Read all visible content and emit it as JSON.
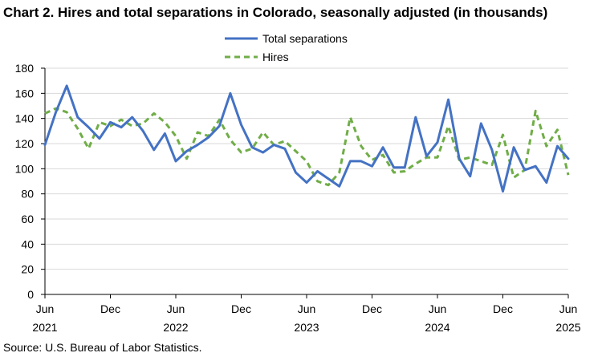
{
  "title": "Chart 2. Hires and total separations in Colorado, seasonally adjusted (in thousands)",
  "source": "Source: U.S. Bureau of Labor Statistics.",
  "chart_data": {
    "type": "line",
    "ylim": [
      0,
      180
    ],
    "yticks": [
      0,
      20,
      40,
      60,
      80,
      100,
      120,
      140,
      160,
      180
    ],
    "grid": true,
    "legend_position": "top-center",
    "x": [
      "2021-06",
      "2021-07",
      "2021-08",
      "2021-09",
      "2021-10",
      "2021-11",
      "2021-12",
      "2022-01",
      "2022-02",
      "2022-03",
      "2022-04",
      "2022-05",
      "2022-06",
      "2022-07",
      "2022-08",
      "2022-09",
      "2022-10",
      "2022-11",
      "2022-12",
      "2023-01",
      "2023-02",
      "2023-03",
      "2023-04",
      "2023-05",
      "2023-06",
      "2023-07",
      "2023-08",
      "2023-09",
      "2023-10",
      "2023-11",
      "2023-12",
      "2024-01",
      "2024-02",
      "2024-03",
      "2024-04",
      "2024-05",
      "2024-06",
      "2024-07",
      "2024-08",
      "2024-09",
      "2024-10",
      "2024-11",
      "2024-12",
      "2025-01",
      "2025-02",
      "2025-03",
      "2025-04",
      "2025-05",
      "2025-06"
    ],
    "xticks": [
      {
        "month": "Jun",
        "year": "2021"
      },
      {
        "month": "Dec",
        "year": ""
      },
      {
        "month": "Jun",
        "year": "2022"
      },
      {
        "month": "Dec",
        "year": ""
      },
      {
        "month": "Jun",
        "year": "2023"
      },
      {
        "month": "Dec",
        "year": ""
      },
      {
        "month": "Jun",
        "year": "2024"
      },
      {
        "month": "Dec",
        "year": ""
      },
      {
        "month": "Jun",
        "year": "2025"
      }
    ],
    "series": [
      {
        "name": "Total separations",
        "color": "#4472C4",
        "dash": "solid",
        "values": [
          119,
          145,
          166,
          141,
          133,
          124,
          137,
          133,
          141,
          130,
          115,
          128,
          106,
          114,
          119,
          125,
          134,
          160,
          135,
          117,
          113,
          119,
          116,
          97,
          89,
          98,
          92,
          86,
          106,
          106,
          102,
          117,
          101,
          101,
          141,
          110,
          121,
          155,
          108,
          94,
          136,
          115,
          82,
          117,
          99,
          102,
          89,
          118,
          108
        ]
      },
      {
        "name": "Hires",
        "color": "#70AD47",
        "dash": "dashed",
        "values": [
          144,
          148,
          145,
          132,
          116,
          137,
          134,
          139,
          134,
          136,
          144,
          137,
          126,
          108,
          129,
          126,
          139,
          123,
          113,
          116,
          129,
          119,
          122,
          114,
          106,
          90,
          87,
          97,
          141,
          118,
          107,
          111,
          97,
          98,
          104,
          109,
          109,
          134,
          107,
          109,
          106,
          103,
          127,
          93,
          99,
          146,
          118,
          131,
          95
        ]
      }
    ]
  }
}
